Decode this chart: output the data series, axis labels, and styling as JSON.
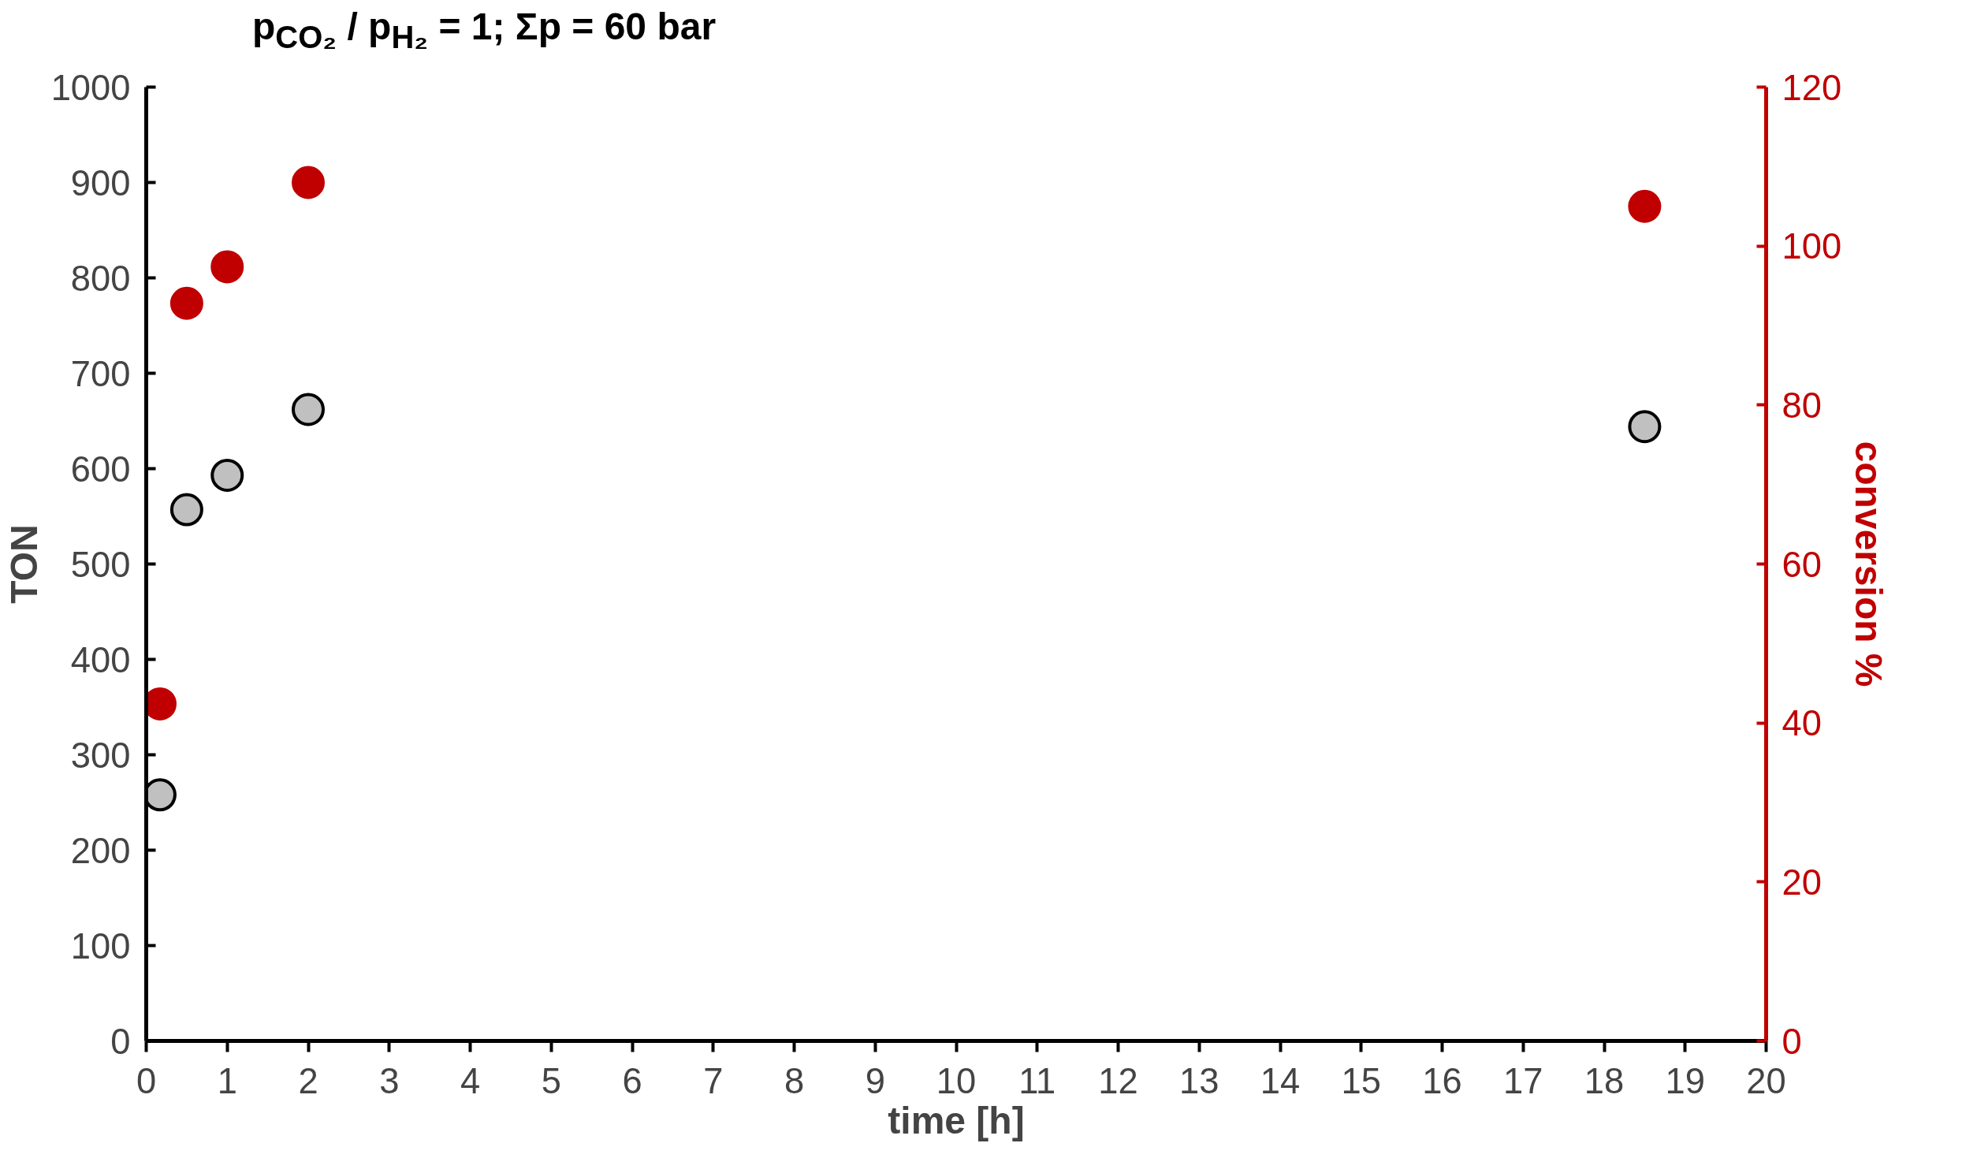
{
  "chart_data": {
    "type": "scatter",
    "title": "p$_{CO₂}$ / p$_{H₂}$ = 1; Σp = 60 bar",
    "xlabel": "time [h]",
    "ylabel": "TON",
    "y2label": "conversion %",
    "xlim": [
      0,
      20
    ],
    "xticks": [
      0,
      1,
      2,
      3,
      4,
      5,
      6,
      7,
      8,
      9,
      10,
      11,
      12,
      13,
      14,
      15,
      16,
      17,
      18,
      19,
      20
    ],
    "ylim": [
      0,
      1000
    ],
    "yticks": [
      0,
      100,
      200,
      300,
      400,
      500,
      600,
      700,
      800,
      900,
      1000
    ],
    "y2lim": [
      0,
      120
    ],
    "y2ticks": [
      0,
      20,
      40,
      60,
      80,
      100,
      120
    ],
    "grid": false,
    "marker": "circle",
    "series": [
      {
        "color": "#c0c0c0",
        "x": [
          0.17,
          0.5,
          1,
          2,
          18.5
        ],
        "values": [
          258,
          557,
          593,
          662,
          644
        ]
      },
      {
        "color": "#c00000",
        "axis": "y2",
        "x": [
          0.17,
          0.5,
          1,
          2,
          18.5
        ],
        "values": [
          42.4,
          92.8,
          97.4,
          108,
          105
        ]
      }
    ]
  }
}
